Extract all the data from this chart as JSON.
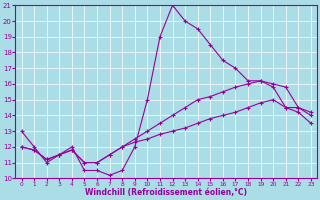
{
  "xlabel": "Windchill (Refroidissement éolien,°C)",
  "x": [
    0,
    1,
    2,
    3,
    4,
    5,
    6,
    7,
    8,
    9,
    10,
    11,
    12,
    13,
    14,
    15,
    16,
    17,
    18,
    19,
    20,
    21,
    22,
    23
  ],
  "line1": [
    13,
    12,
    11,
    11.5,
    12,
    10.5,
    10.5,
    10.2,
    10.5,
    12,
    15,
    19,
    21,
    20,
    19.5,
    18.5,
    17.5,
    17,
    16.2,
    16.2,
    15.8,
    14.5,
    14.5,
    14.0
  ],
  "line2": [
    12,
    11.8,
    11.2,
    11.5,
    11.8,
    11.0,
    11.0,
    11.5,
    12.0,
    12.5,
    13.0,
    13.5,
    14.0,
    14.5,
    15.0,
    15.2,
    15.5,
    15.8,
    16.0,
    16.2,
    16.0,
    15.8,
    14.5,
    14.2
  ],
  "line3": [
    12,
    11.8,
    11.2,
    11.5,
    11.8,
    11.0,
    11.0,
    11.5,
    12.0,
    12.3,
    12.5,
    12.8,
    13.0,
    13.2,
    13.5,
    13.8,
    14.0,
    14.2,
    14.5,
    14.8,
    15.0,
    14.5,
    14.2,
    13.5
  ],
  "xlim": [
    0,
    23
  ],
  "ylim": [
    10,
    21
  ],
  "yticks": [
    10,
    11,
    12,
    13,
    14,
    15,
    16,
    17,
    18,
    19,
    20,
    21
  ],
  "xticks": [
    0,
    1,
    2,
    3,
    4,
    5,
    6,
    7,
    8,
    9,
    10,
    11,
    12,
    13,
    14,
    15,
    16,
    17,
    18,
    19,
    20,
    21,
    22,
    23
  ],
  "line_color": "#990099",
  "bg_color": "#aadde6",
  "grid_color": "#ffffff"
}
